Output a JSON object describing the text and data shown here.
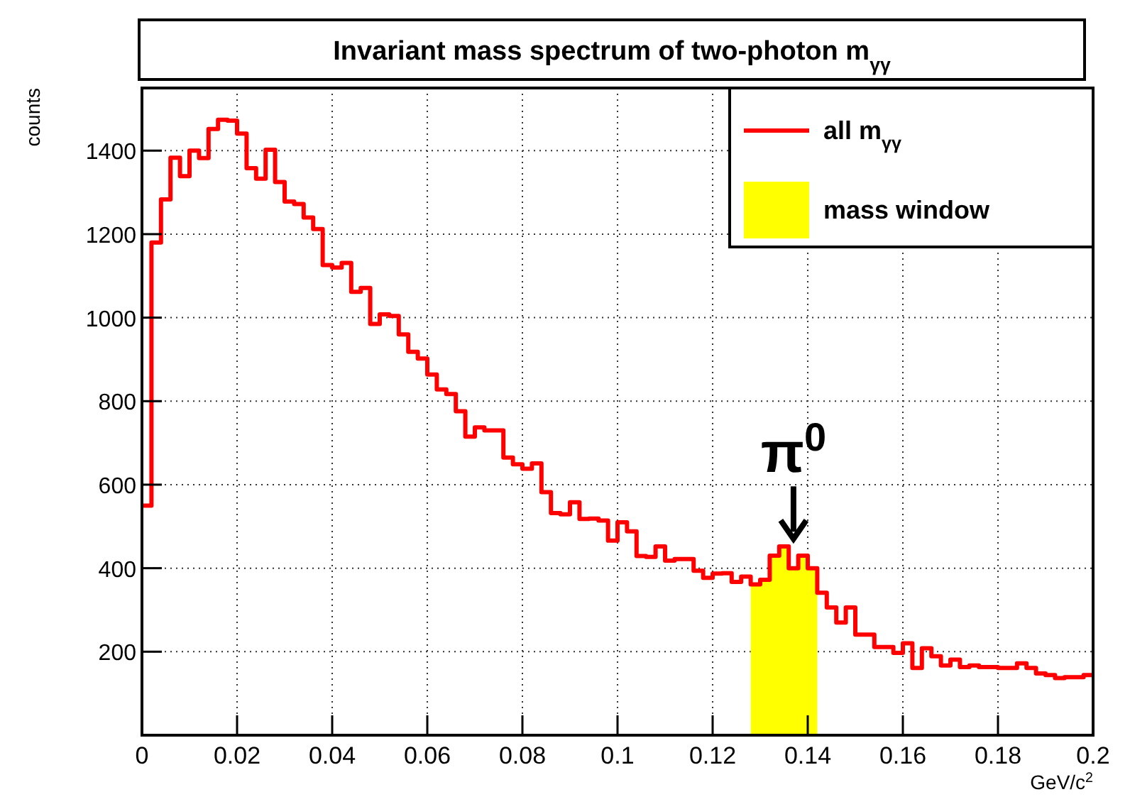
{
  "chart_data": {
    "type": "step",
    "title": "Invariant mass spectrum of two-photon m$_{γγ}$",
    "xlabel": "GeV/c$^{2}$",
    "ylabel": "counts",
    "series": [
      {
        "name": "mass window",
        "type": "area",
        "color": "#ffff00",
        "x": [
          0.128,
          0.13,
          0.132,
          0.134,
          0.136,
          0.138,
          0.14,
          0.142
        ],
        "values": [
          361,
          372,
          430,
          452,
          400,
          430,
          400,
          400
        ]
      },
      {
        "name": "all m$_{γγ}$",
        "color": "#ff0000",
        "x": [
          0,
          0.002,
          0.004,
          0.006,
          0.008,
          0.01,
          0.012,
          0.014,
          0.016,
          0.018,
          0.02,
          0.022,
          0.024,
          0.026,
          0.028,
          0.03,
          0.032,
          0.034,
          0.036,
          0.038,
          0.04,
          0.042,
          0.044,
          0.046,
          0.048,
          0.05,
          0.052,
          0.054,
          0.056,
          0.058,
          0.06,
          0.062,
          0.064,
          0.066,
          0.068,
          0.07,
          0.072,
          0.074,
          0.076,
          0.078,
          0.08,
          0.082,
          0.084,
          0.086,
          0.088,
          0.09,
          0.092,
          0.094,
          0.096,
          0.098,
          0.1,
          0.102,
          0.104,
          0.106,
          0.108,
          0.11,
          0.112,
          0.114,
          0.116,
          0.118,
          0.12,
          0.122,
          0.124,
          0.126,
          0.128,
          0.13,
          0.132,
          0.134,
          0.136,
          0.138,
          0.14,
          0.142,
          0.144,
          0.146,
          0.148,
          0.15,
          0.152,
          0.154,
          0.156,
          0.158,
          0.16,
          0.162,
          0.164,
          0.166,
          0.168,
          0.17,
          0.172,
          0.174,
          0.176,
          0.178,
          0.18,
          0.182,
          0.184,
          0.186,
          0.188,
          0.19,
          0.192,
          0.194,
          0.196,
          0.198,
          0.2
        ],
        "values": [
          550,
          1180,
          1283,
          1383,
          1339,
          1400,
          1382,
          1452,
          1474,
          1472,
          1441,
          1358,
          1333,
          1402,
          1325,
          1278,
          1272,
          1240,
          1212,
          1126,
          1120,
          1131,
          1062,
          1071,
          985,
          1008,
          1004,
          960,
          918,
          902,
          864,
          828,
          817,
          776,
          715,
          737,
          730,
          730,
          665,
          649,
          638,
          651,
          582,
          532,
          529,
          558,
          518,
          519,
          514,
          466,
          510,
          488,
          429,
          427,
          452,
          418,
          422,
          422,
          394,
          377,
          387,
          388,
          367,
          380,
          361,
          372,
          430,
          452,
          400,
          430,
          400,
          341,
          306,
          270,
          306,
          241,
          241,
          211,
          211,
          197,
          220,
          161,
          208,
          189,
          167,
          181,
          163,
          167,
          163,
          163,
          161,
          161,
          172,
          161,
          148,
          144,
          137,
          139,
          139,
          144,
          144
        ]
      }
    ],
    "xlim": [
      0,
      0.2
    ],
    "xticks": [
      0,
      0.02,
      0.04,
      0.06,
      0.08,
      0.1,
      0.12,
      0.14,
      0.16,
      0.18,
      0.2
    ],
    "ylim": [
      0,
      1550
    ],
    "yticks": [
      200,
      400,
      600,
      800,
      1000,
      1200,
      1400
    ],
    "grid": true,
    "legend": "top right",
    "annotations": [
      {
        "text": "π$^{0}$",
        "x": 0.137,
        "y": 460
      }
    ]
  }
}
